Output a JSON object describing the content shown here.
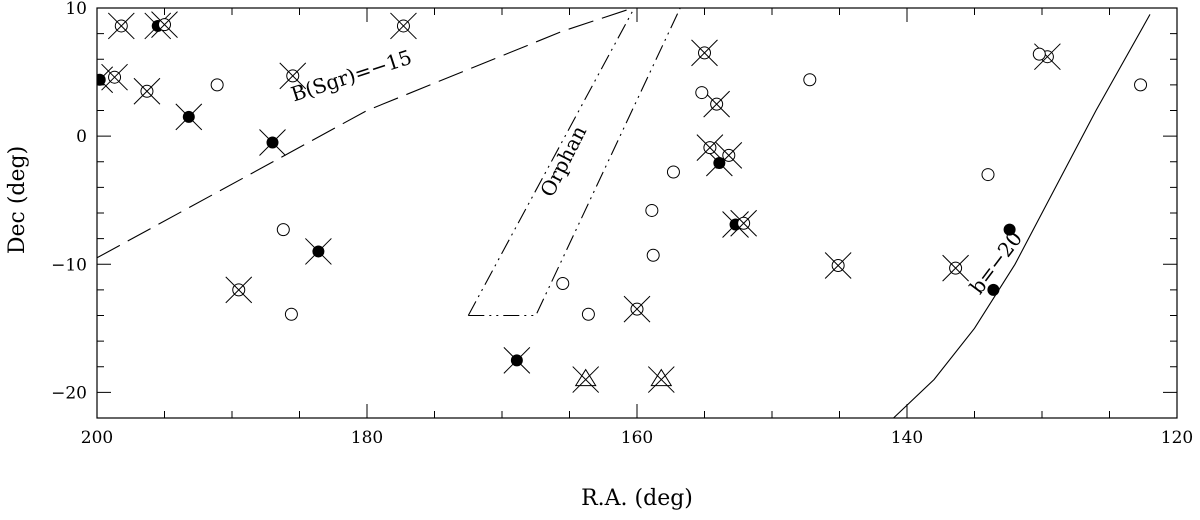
{
  "chart_data": {
    "type": "scatter",
    "title": "",
    "xlabel": "R.A. (deg)",
    "ylabel": "Dec (deg)",
    "xlim": [
      200,
      120
    ],
    "ylim": [
      -22,
      10
    ],
    "x_ticks": [
      200,
      180,
      160,
      140,
      120
    ],
    "y_ticks": [
      -20,
      -10,
      0,
      10
    ],
    "grid": false,
    "legend": "none",
    "series": [
      {
        "marker": "filled-circle-with-cross",
        "points": [
          [
            199.8,
            4.4
          ],
          [
            195.5,
            8.6
          ],
          [
            193.2,
            1.5
          ],
          [
            187.0,
            -0.5
          ],
          [
            183.6,
            -9.0
          ],
          [
            168.9,
            -17.5
          ],
          [
            153.9,
            -2.1
          ],
          [
            152.7,
            -6.9
          ]
        ]
      },
      {
        "marker": "filled-circle",
        "points": [
          [
            133.6,
            -12.0
          ],
          [
            132.4,
            -7.3
          ]
        ]
      },
      {
        "marker": "open-circle-with-cross",
        "points": [
          [
            198.2,
            8.6
          ],
          [
            195.0,
            8.7
          ],
          [
            198.7,
            4.6
          ],
          [
            196.3,
            3.5
          ],
          [
            177.3,
            8.6
          ],
          [
            185.5,
            4.7
          ],
          [
            189.5,
            -12.0
          ],
          [
            155.0,
            6.5
          ],
          [
            154.1,
            2.5
          ],
          [
            154.6,
            -0.9
          ],
          [
            153.2,
            -1.5
          ],
          [
            152.1,
            -6.8
          ],
          [
            160.0,
            -13.5
          ],
          [
            145.1,
            -10.1
          ],
          [
            136.4,
            -10.3
          ],
          [
            129.6,
            6.2
          ]
        ]
      },
      {
        "marker": "open-circle",
        "points": [
          [
            191.1,
            4.0
          ],
          [
            186.2,
            -7.3
          ],
          [
            185.6,
            -13.9
          ],
          [
            165.5,
            -11.5
          ],
          [
            163.6,
            -13.9
          ],
          [
            158.9,
            -5.8
          ],
          [
            158.8,
            -9.3
          ],
          [
            157.3,
            -2.8
          ],
          [
            155.2,
            3.4
          ],
          [
            147.2,
            4.4
          ],
          [
            134.0,
            -3.0
          ],
          [
            130.2,
            6.4
          ],
          [
            122.7,
            4.0
          ]
        ]
      },
      {
        "marker": "open-triangle-with-cross",
        "points": [
          [
            163.8,
            -19.0
          ],
          [
            158.2,
            -19.0
          ]
        ]
      }
    ],
    "curves": [
      {
        "label": "B(Sgr)=−15",
        "style": "long-dash",
        "points": [
          [
            200,
            -9.5
          ],
          [
            180,
            2.0
          ],
          [
            165.5,
            8.2
          ],
          [
            160.3,
            10.0
          ]
        ]
      },
      {
        "label": "b=−20",
        "style": "solid",
        "points": [
          [
            141.0,
            -22.0
          ],
          [
            138.0,
            -19.0
          ],
          [
            135.0,
            -15.0
          ],
          [
            132.0,
            -10.0
          ],
          [
            129.0,
            -4.0
          ],
          [
            126.0,
            2.0
          ],
          [
            122.0,
            9.5
          ]
        ]
      },
      {
        "label": "Orphan",
        "style": "dash-dot-dot",
        "points": [
          [
            172.5,
            -14.0
          ],
          [
            167.5,
            -14.0
          ],
          [
            156.8,
            10.0
          ]
        ]
      },
      {
        "label": "",
        "style": "dash-dot-dot",
        "points": [
          [
            172.5,
            -14.0
          ],
          [
            160.2,
            10.0
          ]
        ]
      }
    ]
  }
}
